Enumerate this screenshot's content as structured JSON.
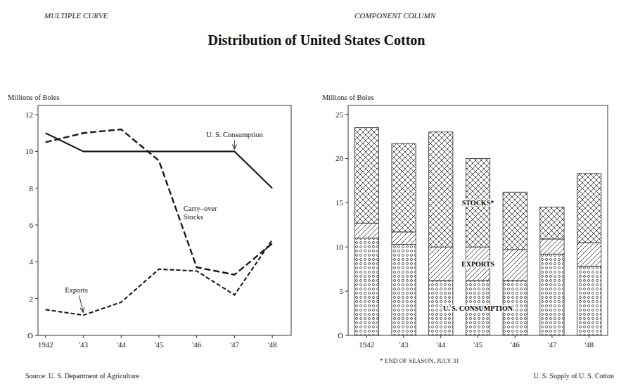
{
  "chart_data": [
    {
      "type": "line",
      "title": "Distribution of United States Cotton",
      "subtitle": "MULTIPLE CURVE",
      "y_label": "Millions of Boles",
      "source": "Source: U. S. Department of Agriculture",
      "x": [
        1942,
        1943,
        1944,
        1945,
        1946,
        1947,
        1948
      ],
      "xlim": [
        1941.8,
        1948.5
      ],
      "xticks": [
        1942,
        {
          "value": 1943,
          "label": "'43"
        },
        {
          "value": 1944,
          "label": "'44"
        },
        {
          "value": 1945,
          "label": "'45"
        },
        {
          "value": 1946,
          "label": "'46"
        },
        {
          "value": 1947,
          "label": "'47"
        },
        {
          "value": 1948,
          "label": "'48"
        }
      ],
      "ylim": [
        0,
        12.5
      ],
      "yticks": [
        {
          "value": 0,
          "label": "O"
        },
        2,
        4,
        6,
        8,
        10,
        12
      ],
      "grid": false,
      "color": "#1a1a1a",
      "series": [
        {
          "name": "U. S. Consumption",
          "line_style": "solid",
          "values": [
            11.0,
            10.0,
            10.0,
            10.0,
            10.0,
            10.0,
            8.0
          ]
        },
        {
          "name": "Carry–over\nStocks",
          "line_style": "long-dashed",
          "values": [
            10.5,
            11.0,
            11.2,
            9.5,
            3.7,
            3.3,
            5.0
          ]
        },
        {
          "name": "Exports",
          "line_style": "dashed",
          "values": [
            1.4,
            1.1,
            1.8,
            3.6,
            3.5,
            2.2,
            5.2
          ]
        }
      ]
    },
    {
      "type": "bar",
      "stacked": true,
      "subtitle": "COMPONENT COLUMN",
      "y_label": "Millions of Boles",
      "source": "U. S. Supply of U. S. Cotton",
      "footnote": "* END OF SEASON, JULY 31",
      "categories": [
        "1942",
        "'43",
        "'44",
        "'45",
        "'46",
        "'47",
        "'48"
      ],
      "ylim": [
        0,
        26
      ],
      "yticks": [
        {
          "value": 0,
          "label": "O"
        },
        5,
        10,
        15,
        20,
        25
      ],
      "grid": false,
      "color": "#222222",
      "series": [
        {
          "name": "U. S. CONSUMPTION",
          "values": [
            11.0,
            10.3,
            6.2,
            6.2,
            6.2,
            9.2,
            7.8
          ]
        },
        {
          "name": "EXPORTS",
          "values": [
            1.7,
            1.4,
            3.8,
            3.8,
            3.5,
            1.7,
            2.7
          ]
        },
        {
          "name": "STOCKS*",
          "values": [
            10.8,
            10.0,
            13.0,
            10.0,
            6.5,
            3.6,
            7.8
          ]
        }
      ]
    }
  ]
}
